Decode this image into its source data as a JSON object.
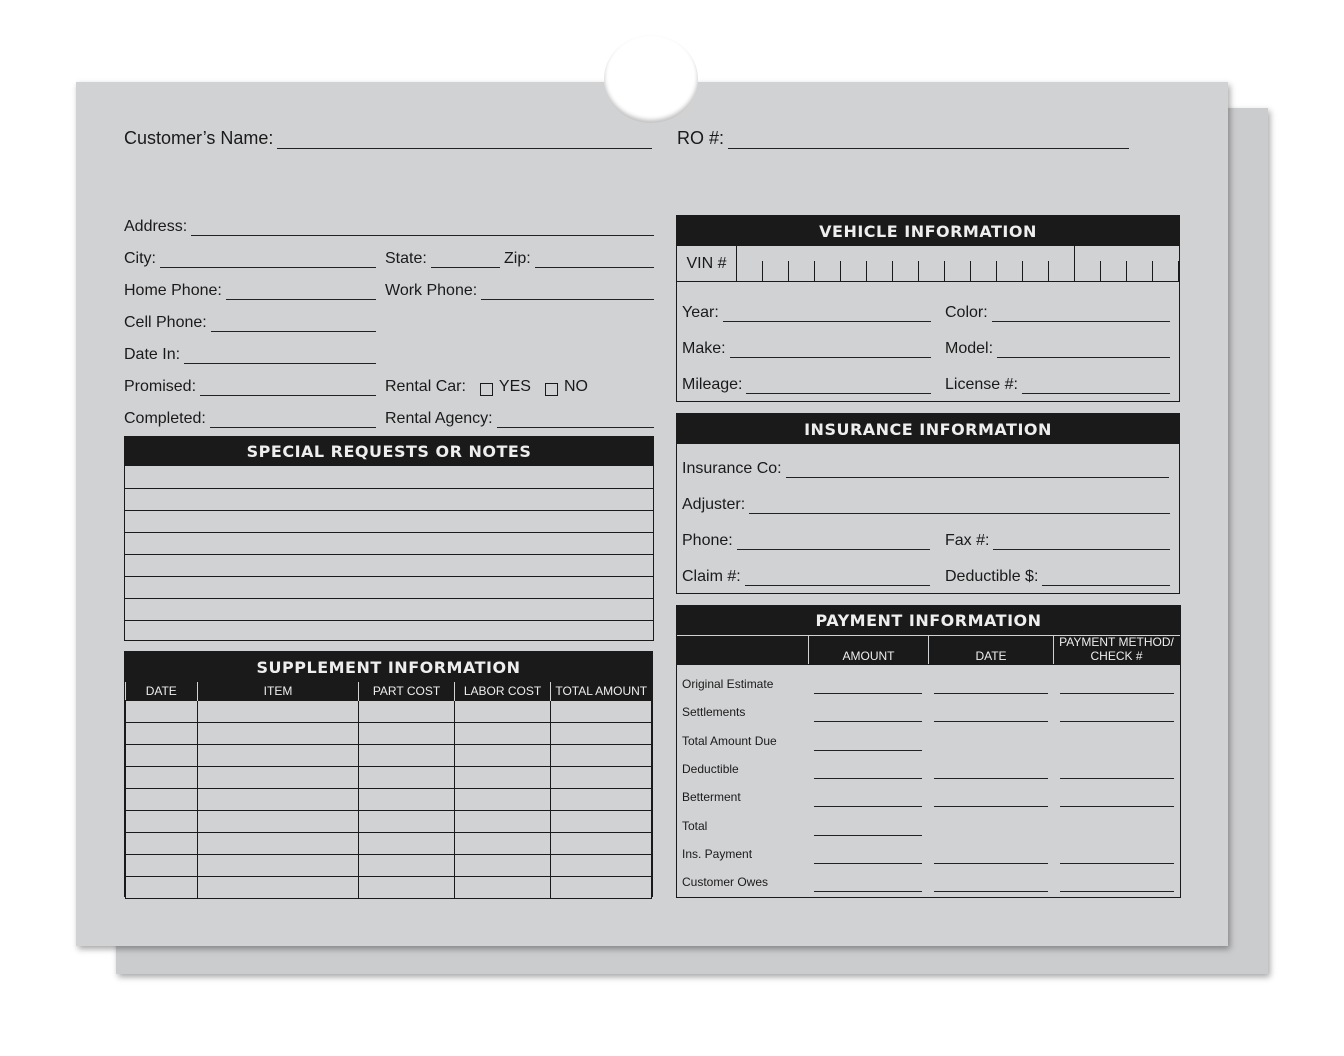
{
  "header": {
    "customer_name": "Customer’s Name:",
    "ro": "RO #:"
  },
  "customer": {
    "address": "Address:",
    "city": "City:",
    "state": "State:",
    "zip": "Zip:",
    "home_phone": "Home Phone:",
    "work_phone": "Work Phone:",
    "cell_phone": "Cell Phone:",
    "date_in": "Date In:",
    "promised": "Promised:",
    "rental_car": "Rental Car:",
    "yes": "YES",
    "no": "NO",
    "completed": "Completed:",
    "rental_agency": "Rental Agency:"
  },
  "notes": {
    "title": "SPECIAL REQUESTS OR NOTES"
  },
  "supplement": {
    "title": "SUPPLEMENT INFORMATION",
    "columns": [
      "DATE",
      "ITEM",
      "PART COST",
      "LABOR COST",
      "TOTAL AMOUNT"
    ]
  },
  "vehicle": {
    "title": "VEHICLE INFORMATION",
    "vin": "VIN #",
    "year": "Year:",
    "color": "Color:",
    "make": "Make:",
    "model": "Model:",
    "mileage": "Mileage:",
    "license": "License #:"
  },
  "insurance": {
    "title": "INSURANCE INFORMATION",
    "company": "Insurance Co:",
    "adjuster": "Adjuster:",
    "phone": "Phone:",
    "fax": "Fax #:",
    "claim": "Claim #:",
    "deductible": "Deductible $:"
  },
  "payment": {
    "title": "PAYMENT INFORMATION",
    "columns": [
      "AMOUNT",
      "DATE",
      "PAYMENT METHOD/ CHECK #"
    ],
    "rows": [
      {
        "label": "Original Estimate",
        "full": true
      },
      {
        "label": "Settlements",
        "full": true
      },
      {
        "label": "Total Amount Due",
        "full": false
      },
      {
        "label": "Deductible",
        "full": true
      },
      {
        "label": "Betterment",
        "full": true
      },
      {
        "label": "Total",
        "full": false
      },
      {
        "label": "Ins. Payment",
        "full": true
      },
      {
        "label": "Customer Owes",
        "full": true
      }
    ]
  }
}
